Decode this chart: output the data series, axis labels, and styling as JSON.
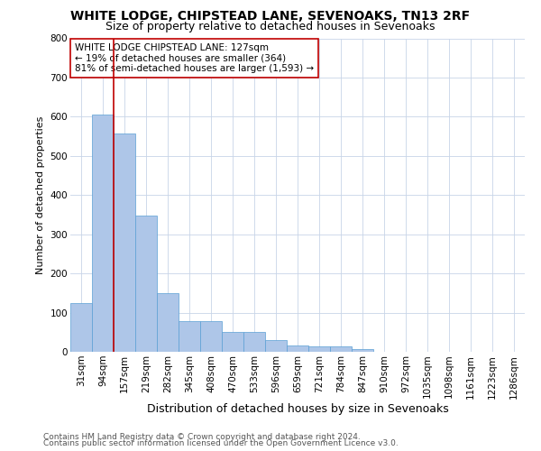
{
  "title1": "WHITE LODGE, CHIPSTEAD LANE, SEVENOAKS, TN13 2RF",
  "title2": "Size of property relative to detached houses in Sevenoaks",
  "xlabel": "Distribution of detached houses by size in Sevenoaks",
  "ylabel": "Number of detached properties",
  "categories": [
    "31sqm",
    "94sqm",
    "157sqm",
    "219sqm",
    "282sqm",
    "345sqm",
    "408sqm",
    "470sqm",
    "533sqm",
    "596sqm",
    "659sqm",
    "721sqm",
    "784sqm",
    "847sqm",
    "910sqm",
    "972sqm",
    "1035sqm",
    "1098sqm",
    "1161sqm",
    "1223sqm",
    "1286sqm"
  ],
  "values": [
    125,
    605,
    558,
    347,
    150,
    78,
    78,
    50,
    50,
    30,
    15,
    14,
    14,
    7,
    0,
    0,
    0,
    0,
    0,
    0,
    0
  ],
  "bar_color": "#aec6e8",
  "bar_edge_color": "#5a9fd4",
  "vline_color": "#c00000",
  "vline_pos": 1.52,
  "annotation_text": "WHITE LODGE CHIPSTEAD LANE: 127sqm\n← 19% of detached houses are smaller (364)\n81% of semi-detached houses are larger (1,593) →",
  "annotation_box_color": "#ffffff",
  "annotation_box_edge_color": "#c00000",
  "ylim": [
    0,
    800
  ],
  "yticks": [
    0,
    100,
    200,
    300,
    400,
    500,
    600,
    700,
    800
  ],
  "footer1": "Contains HM Land Registry data © Crown copyright and database right 2024.",
  "footer2": "Contains public sector information licensed under the Open Government Licence v3.0.",
  "bg_color": "#ffffff",
  "grid_color": "#c8d4e8",
  "title1_fontsize": 10,
  "title2_fontsize": 9,
  "xlabel_fontsize": 9,
  "ylabel_fontsize": 8,
  "tick_fontsize": 7.5,
  "annotation_fontsize": 7.5,
  "footer_fontsize": 6.5
}
